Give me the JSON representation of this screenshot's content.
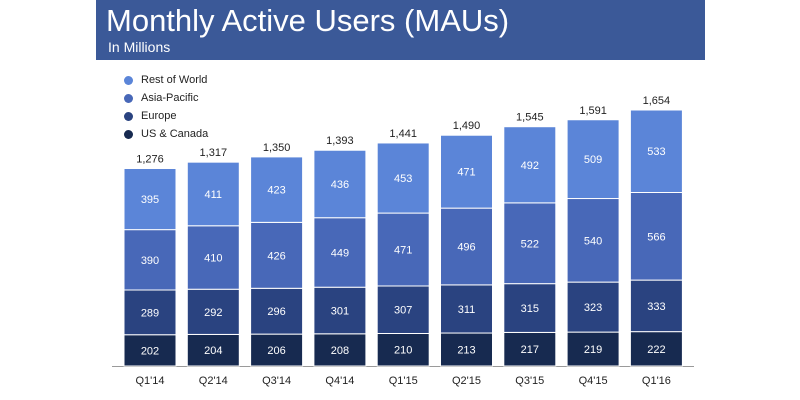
{
  "header": {
    "title": "Monthly Active Users (MAUs)",
    "subtitle": "In Millions"
  },
  "colors": {
    "header_bg": "#3b5998",
    "rest_of_world": "#5b85d8",
    "asia_pacific": "#4868b8",
    "europe": "#2a4380",
    "us_canada": "#172a50"
  },
  "chart_data": {
    "type": "bar",
    "stacked": true,
    "title": "Monthly Active Users (MAUs)",
    "subtitle": "In Millions",
    "categories": [
      "Q1'14",
      "Q2'14",
      "Q3'14",
      "Q4'14",
      "Q1'15",
      "Q2'15",
      "Q3'15",
      "Q4'15",
      "Q1'16"
    ],
    "series": [
      {
        "name": "US & Canada",
        "color": "#172a50",
        "values": [
          202,
          204,
          206,
          208,
          210,
          213,
          217,
          219,
          222
        ]
      },
      {
        "name": "Europe",
        "color": "#2a4380",
        "values": [
          289,
          292,
          296,
          301,
          307,
          311,
          315,
          323,
          333
        ]
      },
      {
        "name": "Asia-Pacific",
        "color": "#4868b8",
        "values": [
          390,
          410,
          426,
          449,
          471,
          496,
          522,
          540,
          566
        ]
      },
      {
        "name": "Rest of World",
        "color": "#5b85d8",
        "values": [
          395,
          411,
          423,
          436,
          453,
          471,
          492,
          509,
          533
        ]
      }
    ],
    "totals": [
      "1,276",
      "1,317",
      "1,350",
      "1,393",
      "1,441",
      "1,490",
      "1,545",
      "1,591",
      "1,654"
    ],
    "legend": {
      "position": "top-left",
      "entries": [
        "Rest of World",
        "Asia-Pacific",
        "Europe",
        "US & Canada"
      ]
    },
    "ylim": [
      0,
      1654
    ],
    "grid": false
  }
}
